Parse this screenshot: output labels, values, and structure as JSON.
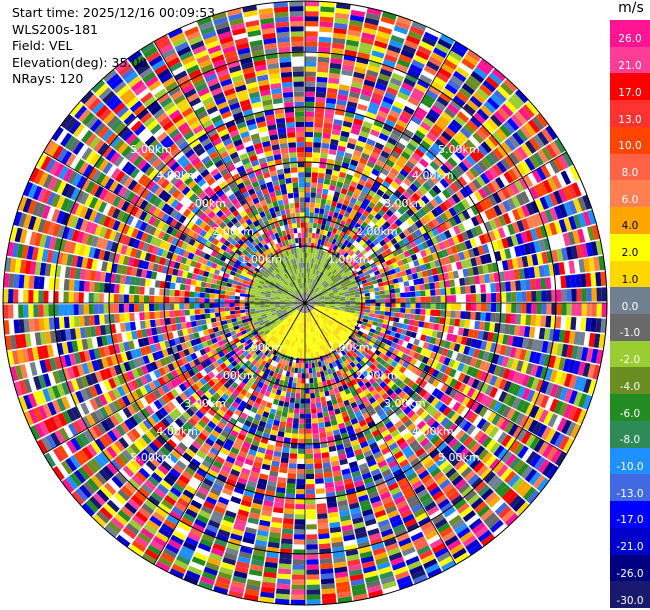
{
  "info": {
    "start_time": "Start time: 2025/12/16 00:09:53",
    "station": "WLS200s-181",
    "field": "Field: VEL",
    "elevation": "Elevation(deg): 35.00",
    "nrays": "NRays: 120"
  },
  "colorbar": {
    "unit": "m/s",
    "labels": [
      "26.0",
      "21.0",
      "17.0",
      "13.0",
      "10.0",
      "8.0",
      "6.0",
      "4.0",
      "2.0",
      "1.0",
      "0.0",
      "-1.0",
      "-2.0",
      "-4.0",
      "-6.0",
      "-8.0",
      "-10.0",
      "-13.0",
      "-17.0",
      "-21.0",
      "-26.0",
      "-30.0"
    ],
    "colors": [
      "#ff1493",
      "#ff3c96",
      "#ff0000",
      "#ff3232",
      "#ff4500",
      "#ff6347",
      "#ff7f50",
      "#ffa500",
      "#ffff00",
      "#ffd700",
      "#708090",
      "#696969",
      "#9acd32",
      "#6b8e23",
      "#228b22",
      "#2e8b57",
      "#1e90ff",
      "#4169e1",
      "#0000ff",
      "#0000cd",
      "#000080",
      "#191970"
    ]
  },
  "range_labels": [
    "5.00km",
    "4.00km",
    "3.00km",
    "2.00km",
    "1.00km"
  ]
}
